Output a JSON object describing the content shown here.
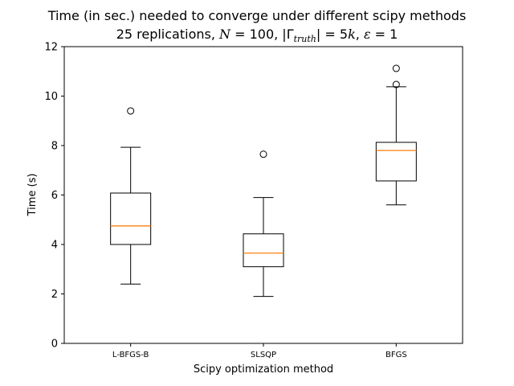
{
  "chart_data": {
    "type": "box",
    "title_line1": "Time (in sec.) needed to converge under different scipy methods",
    "title_line2": {
      "prefix": "25 replications, ",
      "n_symbol": "N",
      "n_value": " = 100, |",
      "gamma_symbol": "Γ",
      "gamma_sub": "truth",
      "gamma_value": "| = 5",
      "k_symbol": "k",
      "eps_sep": ", ",
      "eps_symbol": "ε",
      "eps_value": " = 1"
    },
    "xlabel": "Scipy optimization method",
    "ylabel": "Time (s)",
    "ylim": [
      0,
      12
    ],
    "yticks": [
      0,
      2,
      4,
      6,
      8,
      10,
      12
    ],
    "grid": false,
    "categories": [
      "L-BFGS-B",
      "SLSQP",
      "BFGS"
    ],
    "boxes": [
      {
        "name": "L-BFGS-B",
        "whisker_low": 2.4,
        "q1": 4.0,
        "median": 4.75,
        "q3": 6.08,
        "whisker_high": 7.93,
        "outliers": [
          9.4
        ]
      },
      {
        "name": "SLSQP",
        "whisker_low": 1.9,
        "q1": 3.1,
        "median": 3.65,
        "q3": 4.43,
        "whisker_high": 5.9,
        "outliers": [
          7.65
        ]
      },
      {
        "name": "BFGS",
        "whisker_low": 5.6,
        "q1": 6.57,
        "median": 7.8,
        "q3": 8.13,
        "whisker_high": 10.38,
        "outliers": [
          10.47,
          11.12
        ]
      }
    ],
    "colors": {
      "box": "#000000",
      "median": "#ff7f0e",
      "outlier": "#000000"
    }
  }
}
